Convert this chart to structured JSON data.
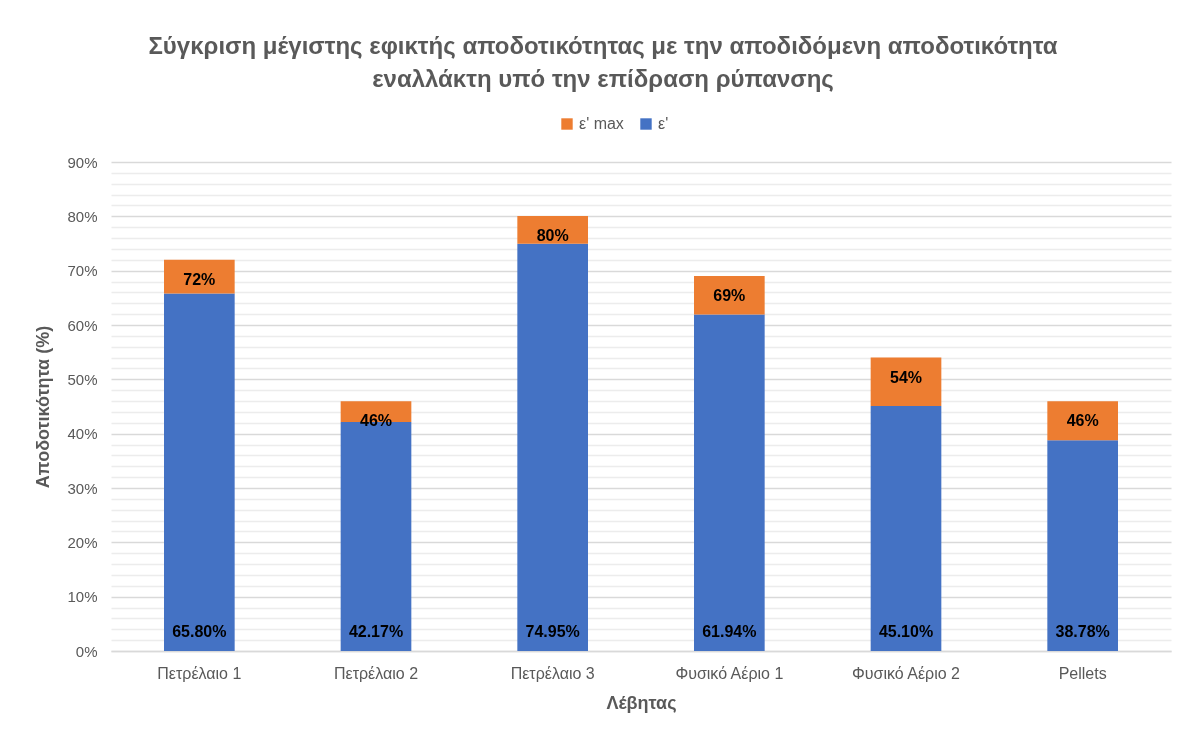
{
  "chart_data": {
    "type": "bar",
    "title": "Σύγκριση μέγιστης εφικτής αποδοτικότητας με την αποδιδόμενη αποδοτικότητα εναλλάκτη υπό την επίδραση ρύπανσης",
    "xlabel": "Λέβητας",
    "ylabel": "Αποδοτικότητα (%)",
    "categories": [
      "Πετρέλαιο 1",
      "Πετρέλαιο 2",
      "Πετρέλαιο 3",
      "Φυσικό Αέριο 1",
      "Φυσικό Αέριο 2",
      "Pellets"
    ],
    "stacked": true,
    "series": [
      {
        "name": "ε'",
        "color": "#4472c4",
        "values": [
          65.8,
          42.17,
          74.95,
          61.94,
          45.1,
          38.78
        ],
        "value_labels": [
          "65.80%",
          "42.17%",
          "74.95%",
          "61.94%",
          "45.10%",
          "38.78%"
        ]
      },
      {
        "name": "ε' max",
        "color": "#ed7d31",
        "values": [
          6.2,
          3.8,
          5.1,
          7.1,
          8.9,
          7.2
        ]
      }
    ],
    "totals": [
      "72%",
      "46%",
      "80%",
      "69%",
      "54%",
      "46%"
    ],
    "ylim": [
      0,
      90
    ],
    "yticks": [
      {
        "value": 0,
        "label": "0%"
      },
      {
        "value": 2,
        "label": null
      },
      {
        "value": 4,
        "label": null
      },
      {
        "value": 6,
        "label": null
      },
      {
        "value": 8,
        "label": null
      },
      {
        "value": 10,
        "label": "10%"
      },
      {
        "value": 12,
        "label": null
      },
      {
        "value": 14,
        "label": null
      },
      {
        "value": 16,
        "label": null
      },
      {
        "value": 18,
        "label": null
      },
      {
        "value": 20,
        "label": "20%"
      },
      {
        "value": 22,
        "label": null
      },
      {
        "value": 24,
        "label": null
      },
      {
        "value": 26,
        "label": null
      },
      {
        "value": 28,
        "label": null
      },
      {
        "value": 30,
        "label": "30%"
      },
      {
        "value": 32,
        "label": null
      },
      {
        "value": 34,
        "label": null
      },
      {
        "value": 36,
        "label": null
      },
      {
        "value": 38,
        "label": null
      },
      {
        "value": 40,
        "label": "40%"
      },
      {
        "value": 42,
        "label": null
      },
      {
        "value": 44,
        "label": null
      },
      {
        "value": 46,
        "label": null
      },
      {
        "value": 48,
        "label": null
      },
      {
        "value": 50,
        "label": "50%"
      },
      {
        "value": 52,
        "label": null
      },
      {
        "value": 54,
        "label": null
      },
      {
        "value": 56,
        "label": null
      },
      {
        "value": 58,
        "label": null
      },
      {
        "value": 60,
        "label": "60%"
      },
      {
        "value": 62,
        "label": null
      },
      {
        "value": 64,
        "label": null
      },
      {
        "value": 66,
        "label": null
      },
      {
        "value": 68,
        "label": null
      },
      {
        "value": 70,
        "label": "70%"
      },
      {
        "value": 72,
        "label": null
      },
      {
        "value": 74,
        "label": null
      },
      {
        "value": 76,
        "label": null
      },
      {
        "value": 78,
        "label": null
      },
      {
        "value": 80,
        "label": "80%"
      },
      {
        "value": 82,
        "label": null
      },
      {
        "value": 84,
        "label": null
      },
      {
        "value": 86,
        "label": null
      },
      {
        "value": 88,
        "label": null
      },
      {
        "value": 90,
        "label": "90%"
      }
    ],
    "grid": true,
    "legend": "top"
  }
}
